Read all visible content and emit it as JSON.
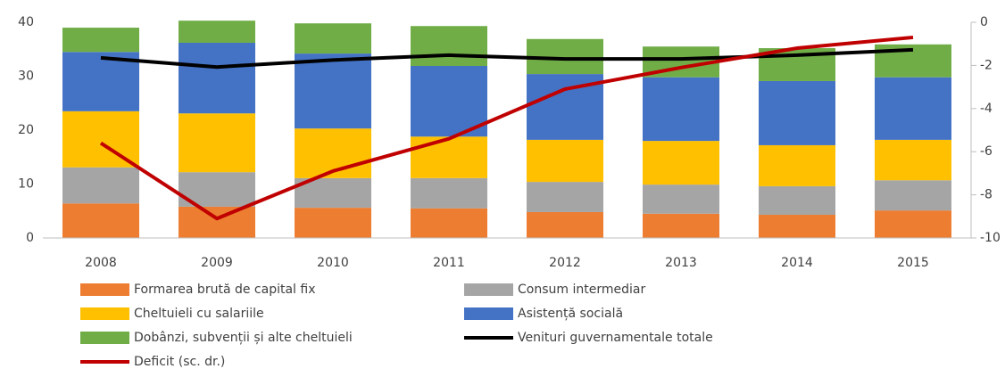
{
  "chart_data": {
    "type": "bar",
    "categories": [
      "2008",
      "2009",
      "2010",
      "2011",
      "2012",
      "2013",
      "2014",
      "2015"
    ],
    "stacked": true,
    "ylim": [
      0,
      40
    ],
    "yticks": [
      0,
      10,
      20,
      30,
      40
    ],
    "y2lim": [
      -10,
      0
    ],
    "y2ticks": [
      -10,
      -8,
      -6,
      -4,
      -2,
      0
    ],
    "series": [
      {
        "name": "Formarea brută de capital fix",
        "type": "bar",
        "color": "#ed7d31",
        "values": [
          6.4,
          5.8,
          5.6,
          5.5,
          4.8,
          4.5,
          4.3,
          5.1
        ]
      },
      {
        "name": "Consum intermediar",
        "type": "bar",
        "color": "#a5a5a5",
        "values": [
          6.7,
          6.4,
          5.5,
          5.6,
          5.6,
          5.4,
          5.3,
          5.6
        ]
      },
      {
        "name": "Cheltuieli cu salariile",
        "type": "bar",
        "color": "#ffc000",
        "values": [
          10.4,
          10.9,
          9.2,
          7.7,
          7.8,
          8.1,
          7.6,
          7.5
        ]
      },
      {
        "name": "Asistență socială",
        "type": "bar",
        "color": "#4472c4",
        "values": [
          11.0,
          13.1,
          13.9,
          13.1,
          12.2,
          11.8,
          11.9,
          11.6
        ]
      },
      {
        "name": "Dobânzi, subvenții și alte cheltuieli",
        "type": "bar",
        "color": "#70ad47",
        "values": [
          4.5,
          4.1,
          5.6,
          7.4,
          6.5,
          5.7,
          6.1,
          6.1
        ]
      },
      {
        "name": "Venituri guvernamentale totale",
        "type": "line",
        "color": "#000000",
        "values": [
          33.4,
          31.7,
          33.0,
          33.9,
          33.2,
          33.2,
          33.9,
          34.9
        ]
      },
      {
        "name": "Deficit (sc. dr.)",
        "type": "line",
        "axis": "y2",
        "color": "#c00000",
        "values": [
          -5.6,
          -9.1,
          -6.9,
          -5.4,
          -3.1,
          -2.1,
          -1.2,
          -0.7
        ]
      }
    ]
  }
}
